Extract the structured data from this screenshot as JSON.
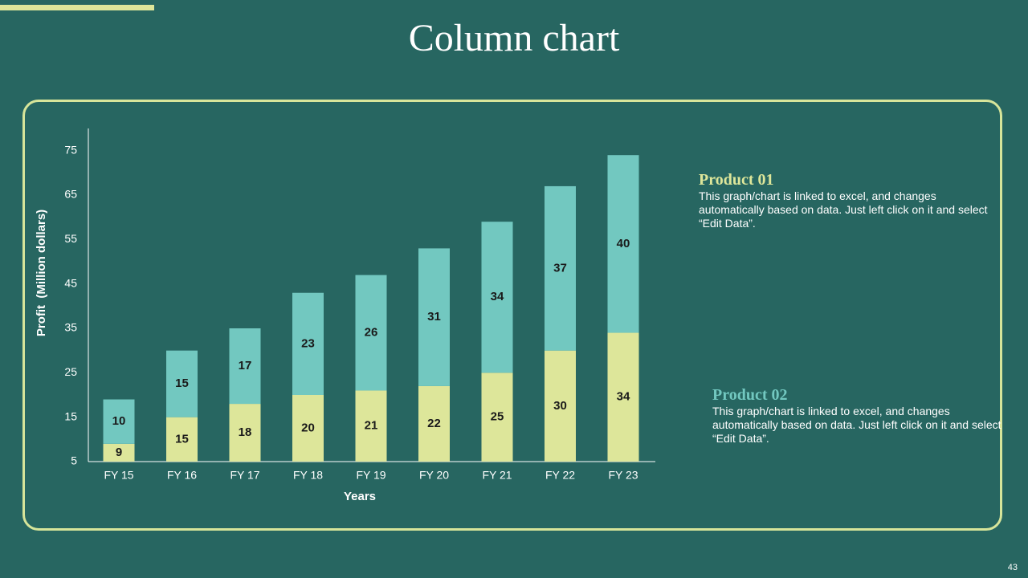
{
  "slide": {
    "title": "Column chart",
    "page_number": "43",
    "colors": {
      "background": "#276661",
      "accent": "#dde69a",
      "frame": "#d7e59a"
    }
  },
  "legend_notes": [
    {
      "name": "Product 01",
      "text": "This graph/chart is linked to excel, and changes automatically based on data. Just left click on it and select “Edit Data”.",
      "color": "#dde69a"
    },
    {
      "name": "Product 02",
      "text": "This graph/chart is linked to excel, and changes automatically based on data. Just left click on it and select “Edit Data”.",
      "color": "#72c8c0"
    }
  ],
  "chart_data": {
    "type": "bar",
    "stacked": true,
    "categories": [
      "FY 15",
      "FY 16",
      "FY 17",
      "FY 18",
      "FY 19",
      "FY 20",
      "FY 21",
      "FY 22",
      "FY 23"
    ],
    "series": [
      {
        "name": "Product 01",
        "values": [
          9,
          15,
          18,
          20,
          21,
          22,
          25,
          30,
          34
        ],
        "color": "#dde69a"
      },
      {
        "name": "Product 02",
        "values": [
          10,
          15,
          17,
          23,
          26,
          31,
          34,
          37,
          40
        ],
        "color": "#72c8c0"
      }
    ],
    "xlabel": "Years",
    "ylabel": "Profit  (Million dollars)",
    "ylim": [
      5,
      80
    ],
    "yticks": [
      5,
      15,
      25,
      35,
      45,
      55,
      65,
      75
    ],
    "grid": false,
    "legend": "none"
  }
}
